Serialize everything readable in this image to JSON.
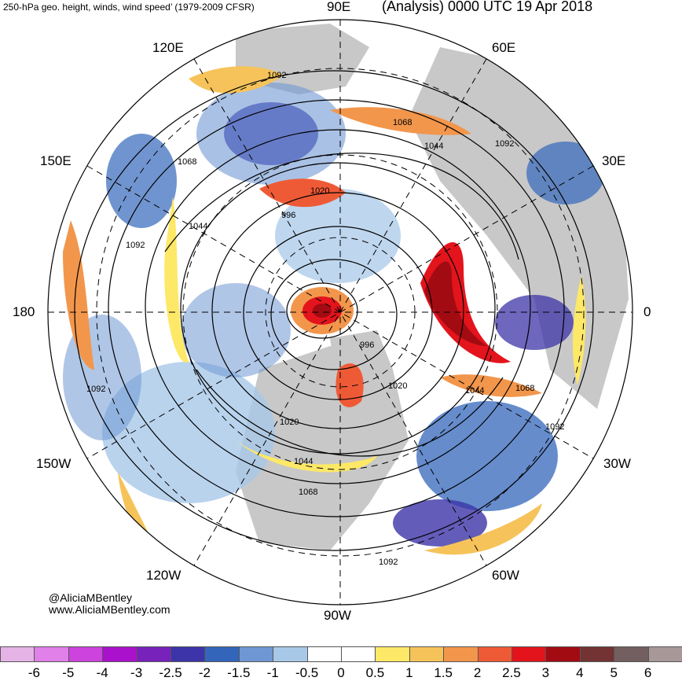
{
  "header": {
    "left_title": "250-hPa geo. height, winds, wind speed’ (1979-2009 CFSR)",
    "right_title": "(Analysis) 0000 UTC 19 Apr 2018"
  },
  "longitude_labels": {
    "e90": "90E",
    "e60": "60E",
    "e120": "120E",
    "e30": "30E",
    "e150": "150E",
    "zero": "0",
    "w180": "180",
    "w30": "30W",
    "w150": "150W",
    "w60": "60W",
    "w120": "120W",
    "w90": "90W"
  },
  "contour_labels": [
    "1092",
    "1068",
    "1044",
    "1020",
    "996",
    "1092",
    "1068",
    "1044",
    "1020",
    "996",
    "1092",
    "1044",
    "1068",
    "1020",
    "1044",
    "1068",
    "1092",
    "1092",
    "1092",
    "1068",
    "1044",
    "1020"
  ],
  "credit": {
    "handle": "@AliciaMBentley",
    "website": "www.AliciaMBentley.com"
  },
  "colorbar": {
    "ticks": [
      "-6",
      "-5",
      "-4",
      "-3",
      "-2.5",
      "-2",
      "-1.5",
      "-1",
      "-0.5",
      "0",
      "0.5",
      "1",
      "1.5",
      "2",
      "2.5",
      "3",
      "4",
      "5",
      "6"
    ],
    "colors": [
      "#e6b3e6",
      "#e080e8",
      "#cc44dd",
      "#aa11cc",
      "#7722bb",
      "#3c34a8",
      "#3366bb",
      "#6f97d3",
      "#a8c8e8",
      "#ffffff",
      "#ffffff",
      "#fde867",
      "#f6c35a",
      "#f2964c",
      "#ef5a36",
      "#e3141c",
      "#a30b12",
      "#733333",
      "#735f5f",
      "#a89898"
    ]
  }
}
